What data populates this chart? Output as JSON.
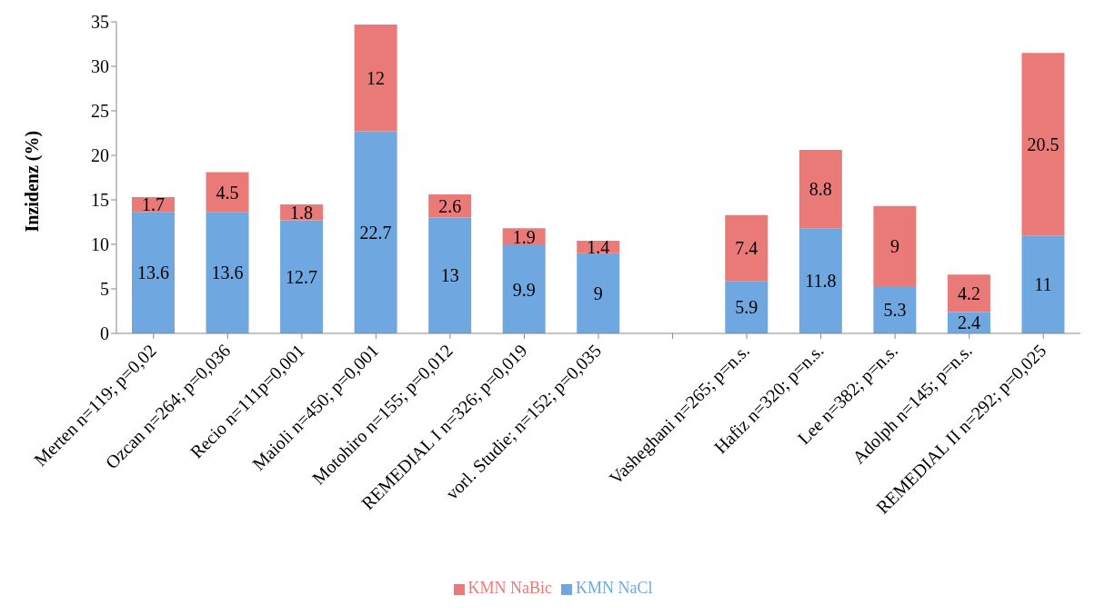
{
  "chart_data": {
    "type": "bar",
    "stacked": true,
    "ylabel": "Inzidenz (%)",
    "categories": [
      "Merten n=119; p=0,02",
      "Ozcan n=264; p=0,036",
      "Recio n=111p=0,001",
      "Maioli n=450; p=0,001",
      "Motohiro n=155; p=0,012",
      "REMEDIAL I n=326; p=0,019",
      "vorl. Studie; n=152; p=0,035",
      null,
      "Vasheghani n=265; p=n.s.",
      "Hafiz n=320; p=n.s.",
      "Lee n=382; p=n.s.",
      "Adolph n=145; p=n.s.",
      "REMEDIAL II n=292; p=0,025"
    ],
    "series": [
      {
        "name": "KMN NaCl",
        "color": "#6fa8e0",
        "values": [
          13.6,
          13.6,
          12.7,
          22.7,
          13,
          9.9,
          9,
          null,
          5.9,
          11.8,
          5.3,
          2.4,
          11
        ]
      },
      {
        "name": "KMN NaBic",
        "color": "#ea7a78",
        "values": [
          1.7,
          4.5,
          1.8,
          12,
          2.6,
          1.9,
          1.4,
          null,
          7.4,
          8.8,
          9,
          4.2,
          20.5
        ]
      }
    ],
    "ylim": [
      0,
      35
    ],
    "yticks": [
      0,
      5,
      10,
      15,
      20,
      25,
      30,
      35
    ],
    "grid": false,
    "legend": "bottom",
    "data_labels": true
  }
}
